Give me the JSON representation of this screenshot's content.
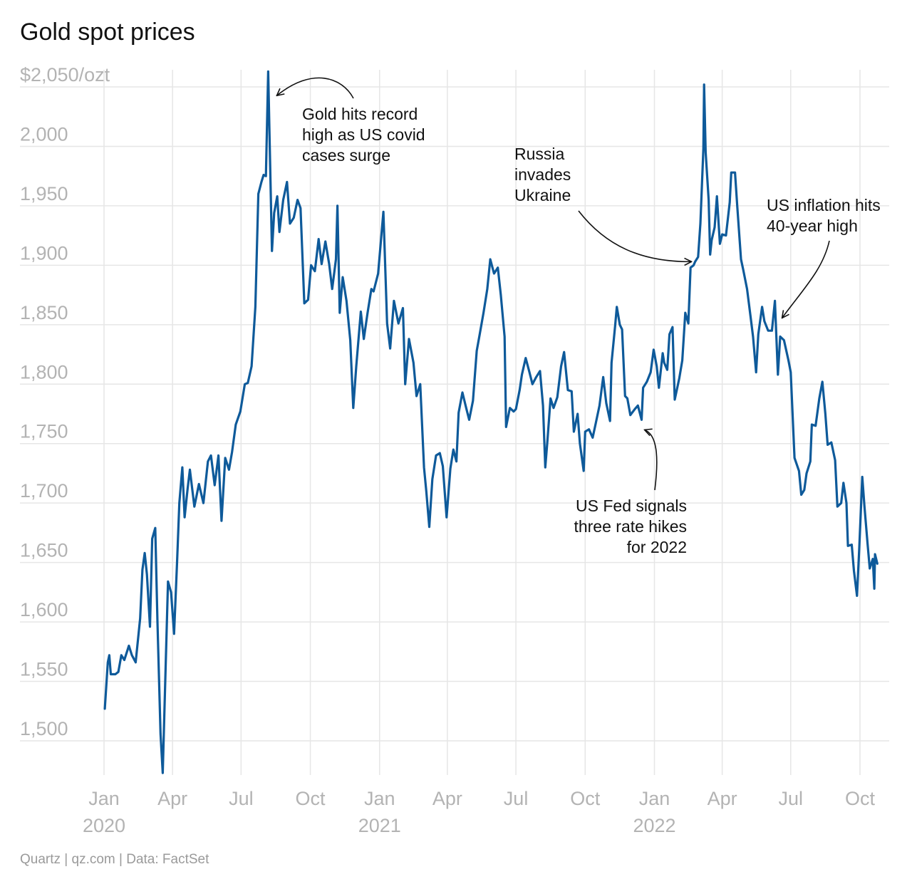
{
  "chart_data": {
    "type": "line",
    "title": "Gold spot prices",
    "source": "Quartz | qz.com | Data: FactSet",
    "ylim": [
      1470,
      2075
    ],
    "y_ticks": [
      {
        "value": 2050,
        "label": "$2,050/ozt"
      },
      {
        "value": 2000,
        "label": "2,000"
      },
      {
        "value": 1950,
        "label": "1,950"
      },
      {
        "value": 1900,
        "label": "1,900"
      },
      {
        "value": 1850,
        "label": "1,850"
      },
      {
        "value": 1800,
        "label": "1,800"
      },
      {
        "value": 1750,
        "label": "1,750"
      },
      {
        "value": 1700,
        "label": "1,700"
      },
      {
        "value": 1650,
        "label": "1,650"
      },
      {
        "value": 1600,
        "label": "1,600"
      },
      {
        "value": 1550,
        "label": "1,550"
      },
      {
        "value": 1500,
        "label": "1,500"
      }
    ],
    "x_ticks": [
      {
        "date": "2020-01-01",
        "label": "Jan",
        "year": "2020"
      },
      {
        "date": "2020-04-01",
        "label": "Apr",
        "year": ""
      },
      {
        "date": "2020-07-01",
        "label": "Jul",
        "year": ""
      },
      {
        "date": "2020-10-01",
        "label": "Oct",
        "year": ""
      },
      {
        "date": "2021-01-01",
        "label": "Jan",
        "year": "2021"
      },
      {
        "date": "2021-04-01",
        "label": "Apr",
        "year": ""
      },
      {
        "date": "2021-07-01",
        "label": "Jul",
        "year": ""
      },
      {
        "date": "2021-10-01",
        "label": "Oct",
        "year": ""
      },
      {
        "date": "2022-01-01",
        "label": "Jan",
        "year": "2022"
      },
      {
        "date": "2022-04-01",
        "label": "Apr",
        "year": ""
      },
      {
        "date": "2022-07-01",
        "label": "Jul",
        "year": ""
      },
      {
        "date": "2022-10-01",
        "label": "Oct",
        "year": ""
      }
    ],
    "grid": true,
    "line_color": "#0e5a9a",
    "series": [
      {
        "points": [
          [
            "2020-01-02",
            1527
          ],
          [
            "2020-01-06",
            1566
          ],
          [
            "2020-01-08",
            1572
          ],
          [
            "2020-01-10",
            1556
          ],
          [
            "2020-01-16",
            1556
          ],
          [
            "2020-01-20",
            1558
          ],
          [
            "2020-01-24",
            1572
          ],
          [
            "2020-01-28",
            1568
          ],
          [
            "2020-02-03",
            1580
          ],
          [
            "2020-02-07",
            1572
          ],
          [
            "2020-02-12",
            1566
          ],
          [
            "2020-02-18",
            1603
          ],
          [
            "2020-02-21",
            1644
          ],
          [
            "2020-02-24",
            1658
          ],
          [
            "2020-02-27",
            1640
          ],
          [
            "2020-03-02",
            1596
          ],
          [
            "2020-03-05",
            1670
          ],
          [
            "2020-03-09",
            1679
          ],
          [
            "2020-03-12",
            1600
          ],
          [
            "2020-03-16",
            1506
          ],
          [
            "2020-03-19",
            1473
          ],
          [
            "2020-03-23",
            1567
          ],
          [
            "2020-03-26",
            1634
          ],
          [
            "2020-03-30",
            1625
          ],
          [
            "2020-04-03",
            1590
          ],
          [
            "2020-04-07",
            1650
          ],
          [
            "2020-04-10",
            1700
          ],
          [
            "2020-04-14",
            1730
          ],
          [
            "2020-04-17",
            1688
          ],
          [
            "2020-04-21",
            1712
          ],
          [
            "2020-04-24",
            1728
          ],
          [
            "2020-04-30",
            1697
          ],
          [
            "2020-05-06",
            1716
          ],
          [
            "2020-05-12",
            1700
          ],
          [
            "2020-05-18",
            1735
          ],
          [
            "2020-05-22",
            1740
          ],
          [
            "2020-05-27",
            1715
          ],
          [
            "2020-06-01",
            1740
          ],
          [
            "2020-06-05",
            1685
          ],
          [
            "2020-06-10",
            1738
          ],
          [
            "2020-06-15",
            1728
          ],
          [
            "2020-06-19",
            1743
          ],
          [
            "2020-06-24",
            1766
          ],
          [
            "2020-06-30",
            1777
          ],
          [
            "2020-07-06",
            1800
          ],
          [
            "2020-07-10",
            1801
          ],
          [
            "2020-07-15",
            1815
          ],
          [
            "2020-07-20",
            1865
          ],
          [
            "2020-07-24",
            1960
          ],
          [
            "2020-07-28",
            1970
          ],
          [
            "2020-07-31",
            1976
          ],
          [
            "2020-08-03",
            1975
          ],
          [
            "2020-08-06",
            2063
          ],
          [
            "2020-08-11",
            1912
          ],
          [
            "2020-08-14",
            1944
          ],
          [
            "2020-08-18",
            1958
          ],
          [
            "2020-08-21",
            1928
          ],
          [
            "2020-08-26",
            1955
          ],
          [
            "2020-08-31",
            1970
          ],
          [
            "2020-09-04",
            1935
          ],
          [
            "2020-09-09",
            1940
          ],
          [
            "2020-09-14",
            1955
          ],
          [
            "2020-09-18",
            1948
          ],
          [
            "2020-09-23",
            1868
          ],
          [
            "2020-09-28",
            1871
          ],
          [
            "2020-10-02",
            1900
          ],
          [
            "2020-10-07",
            1895
          ],
          [
            "2020-10-12",
            1922
          ],
          [
            "2020-10-16",
            1901
          ],
          [
            "2020-10-21",
            1920
          ],
          [
            "2020-10-26",
            1901
          ],
          [
            "2020-10-30",
            1880
          ],
          [
            "2020-11-04",
            1905
          ],
          [
            "2020-11-06",
            1950
          ],
          [
            "2020-11-09",
            1860
          ],
          [
            "2020-11-13",
            1890
          ],
          [
            "2020-11-18",
            1870
          ],
          [
            "2020-11-23",
            1837
          ],
          [
            "2020-11-27",
            1780
          ],
          [
            "2020-12-01",
            1815
          ],
          [
            "2020-12-07",
            1861
          ],
          [
            "2020-12-11",
            1838
          ],
          [
            "2020-12-16",
            1860
          ],
          [
            "2020-12-21",
            1880
          ],
          [
            "2020-12-24",
            1878
          ],
          [
            "2020-12-30",
            1893
          ],
          [
            "2021-01-06",
            1945
          ],
          [
            "2021-01-11",
            1851
          ],
          [
            "2021-01-15",
            1830
          ],
          [
            "2021-01-20",
            1870
          ],
          [
            "2021-01-26",
            1851
          ],
          [
            "2021-02-01",
            1864
          ],
          [
            "2021-02-04",
            1800
          ],
          [
            "2021-02-09",
            1838
          ],
          [
            "2021-02-15",
            1818
          ],
          [
            "2021-02-19",
            1790
          ],
          [
            "2021-02-24",
            1800
          ],
          [
            "2021-03-01",
            1730
          ],
          [
            "2021-03-04",
            1710
          ],
          [
            "2021-03-08",
            1680
          ],
          [
            "2021-03-12",
            1720
          ],
          [
            "2021-03-17",
            1740
          ],
          [
            "2021-03-22",
            1742
          ],
          [
            "2021-03-26",
            1731
          ],
          [
            "2021-03-31",
            1688
          ],
          [
            "2021-04-05",
            1729
          ],
          [
            "2021-04-09",
            1745
          ],
          [
            "2021-04-13",
            1735
          ],
          [
            "2021-04-16",
            1776
          ],
          [
            "2021-04-21",
            1793
          ],
          [
            "2021-04-26",
            1780
          ],
          [
            "2021-04-30",
            1770
          ],
          [
            "2021-05-05",
            1786
          ],
          [
            "2021-05-10",
            1828
          ],
          [
            "2021-05-14",
            1842
          ],
          [
            "2021-05-19",
            1860
          ],
          [
            "2021-05-24",
            1880
          ],
          [
            "2021-05-28",
            1905
          ],
          [
            "2021-06-02",
            1893
          ],
          [
            "2021-06-07",
            1898
          ],
          [
            "2021-06-11",
            1875
          ],
          [
            "2021-06-16",
            1840
          ],
          [
            "2021-06-18",
            1764
          ],
          [
            "2021-06-23",
            1780
          ],
          [
            "2021-06-28",
            1777
          ],
          [
            "2021-07-01",
            1779
          ],
          [
            "2021-07-06",
            1795
          ],
          [
            "2021-07-09",
            1808
          ],
          [
            "2021-07-14",
            1822
          ],
          [
            "2021-07-19",
            1810
          ],
          [
            "2021-07-23",
            1800
          ],
          [
            "2021-07-28",
            1806
          ],
          [
            "2021-08-02",
            1811
          ],
          [
            "2021-08-06",
            1782
          ],
          [
            "2021-08-09",
            1730
          ],
          [
            "2021-08-12",
            1753
          ],
          [
            "2021-08-16",
            1788
          ],
          [
            "2021-08-20",
            1780
          ],
          [
            "2021-08-25",
            1789
          ],
          [
            "2021-08-30",
            1815
          ],
          [
            "2021-09-03",
            1827
          ],
          [
            "2021-09-08",
            1795
          ],
          [
            "2021-09-13",
            1794
          ],
          [
            "2021-09-16",
            1760
          ],
          [
            "2021-09-21",
            1775
          ],
          [
            "2021-09-24",
            1750
          ],
          [
            "2021-09-29",
            1727
          ],
          [
            "2021-10-01",
            1760
          ],
          [
            "2021-10-06",
            1762
          ],
          [
            "2021-10-11",
            1755
          ],
          [
            "2021-10-15",
            1767
          ],
          [
            "2021-10-20",
            1782
          ],
          [
            "2021-10-25",
            1806
          ],
          [
            "2021-10-29",
            1784
          ],
          [
            "2021-11-03",
            1769
          ],
          [
            "2021-11-05",
            1818
          ],
          [
            "2021-11-10",
            1850
          ],
          [
            "2021-11-12",
            1865
          ],
          [
            "2021-11-16",
            1850
          ],
          [
            "2021-11-19",
            1846
          ],
          [
            "2021-11-23",
            1790
          ],
          [
            "2021-11-26",
            1788
          ],
          [
            "2021-11-30",
            1774
          ],
          [
            "2021-12-06",
            1779
          ],
          [
            "2021-12-10",
            1782
          ],
          [
            "2021-12-15",
            1770
          ],
          [
            "2021-12-17",
            1797
          ],
          [
            "2021-12-22",
            1802
          ],
          [
            "2021-12-27",
            1810
          ],
          [
            "2021-12-31",
            1829
          ],
          [
            "2022-01-04",
            1815
          ],
          [
            "2022-01-07",
            1797
          ],
          [
            "2022-01-12",
            1826
          ],
          [
            "2022-01-14",
            1818
          ],
          [
            "2022-01-18",
            1812
          ],
          [
            "2022-01-21",
            1842
          ],
          [
            "2022-01-25",
            1848
          ],
          [
            "2022-01-28",
            1787
          ],
          [
            "2022-02-03",
            1805
          ],
          [
            "2022-02-07",
            1820
          ],
          [
            "2022-02-11",
            1860
          ],
          [
            "2022-02-15",
            1851
          ],
          [
            "2022-02-18",
            1898
          ],
          [
            "2022-02-22",
            1900
          ],
          [
            "2022-02-24",
            1903
          ],
          [
            "2022-02-28",
            1907
          ],
          [
            "2022-03-03",
            1935
          ],
          [
            "2022-03-07",
            1998
          ],
          [
            "2022-03-08",
            2052
          ],
          [
            "2022-03-10",
            1995
          ],
          [
            "2022-03-14",
            1955
          ],
          [
            "2022-03-16",
            1909
          ],
          [
            "2022-03-18",
            1921
          ],
          [
            "2022-03-22",
            1932
          ],
          [
            "2022-03-25",
            1958
          ],
          [
            "2022-03-29",
            1918
          ],
          [
            "2022-04-01",
            1926
          ],
          [
            "2022-04-06",
            1925
          ],
          [
            "2022-04-11",
            1953
          ],
          [
            "2022-04-13",
            1978
          ],
          [
            "2022-04-18",
            1978
          ],
          [
            "2022-04-21",
            1950
          ],
          [
            "2022-04-26",
            1905
          ],
          [
            "2022-04-29",
            1896
          ],
          [
            "2022-05-04",
            1880
          ],
          [
            "2022-05-09",
            1855
          ],
          [
            "2022-05-12",
            1840
          ],
          [
            "2022-05-16",
            1810
          ],
          [
            "2022-05-19",
            1842
          ],
          [
            "2022-05-24",
            1865
          ],
          [
            "2022-05-27",
            1853
          ],
          [
            "2022-06-01",
            1845
          ],
          [
            "2022-06-06",
            1845
          ],
          [
            "2022-06-10",
            1870
          ],
          [
            "2022-06-14",
            1808
          ],
          [
            "2022-06-17",
            1840
          ],
          [
            "2022-06-22",
            1837
          ],
          [
            "2022-06-28",
            1820
          ],
          [
            "2022-07-01",
            1810
          ],
          [
            "2022-07-06",
            1738
          ],
          [
            "2022-07-12",
            1727
          ],
          [
            "2022-07-15",
            1707
          ],
          [
            "2022-07-19",
            1711
          ],
          [
            "2022-07-22",
            1725
          ],
          [
            "2022-07-27",
            1735
          ],
          [
            "2022-07-29",
            1766
          ],
          [
            "2022-08-03",
            1765
          ],
          [
            "2022-08-08",
            1788
          ],
          [
            "2022-08-12",
            1802
          ],
          [
            "2022-08-16",
            1775
          ],
          [
            "2022-08-19",
            1749
          ],
          [
            "2022-08-24",
            1751
          ],
          [
            "2022-08-29",
            1736
          ],
          [
            "2022-09-01",
            1697
          ],
          [
            "2022-09-06",
            1700
          ],
          [
            "2022-09-09",
            1717
          ],
          [
            "2022-09-13",
            1700
          ],
          [
            "2022-09-15",
            1664
          ],
          [
            "2022-09-20",
            1665
          ],
          [
            "2022-09-23",
            1643
          ],
          [
            "2022-09-27",
            1622
          ],
          [
            "2022-09-30",
            1661
          ],
          [
            "2022-10-04",
            1722
          ],
          [
            "2022-10-07",
            1697
          ],
          [
            "2022-10-11",
            1666
          ],
          [
            "2022-10-14",
            1645
          ],
          [
            "2022-10-18",
            1653
          ],
          [
            "2022-10-20",
            1628
          ],
          [
            "2022-10-21",
            1657
          ],
          [
            "2022-10-24",
            1649
          ]
        ]
      }
    ],
    "annotations": [
      {
        "lines": [
          "Gold hits record",
          "high as US covid",
          "cases surge"
        ],
        "date": "2020-08-06",
        "value": 2063
      },
      {
        "lines": [
          "Russia",
          "invades",
          "Ukraine"
        ],
        "date": "2022-02-24",
        "value": 1903
      },
      {
        "lines": [
          "US inflation hits",
          "40-year high"
        ],
        "date": "2022-06-10",
        "value": 1870
      },
      {
        "lines": [
          "US Fed signals",
          "three rate hikes",
          "for 2022"
        ],
        "date": "2021-12-15",
        "value": 1770
      }
    ]
  }
}
